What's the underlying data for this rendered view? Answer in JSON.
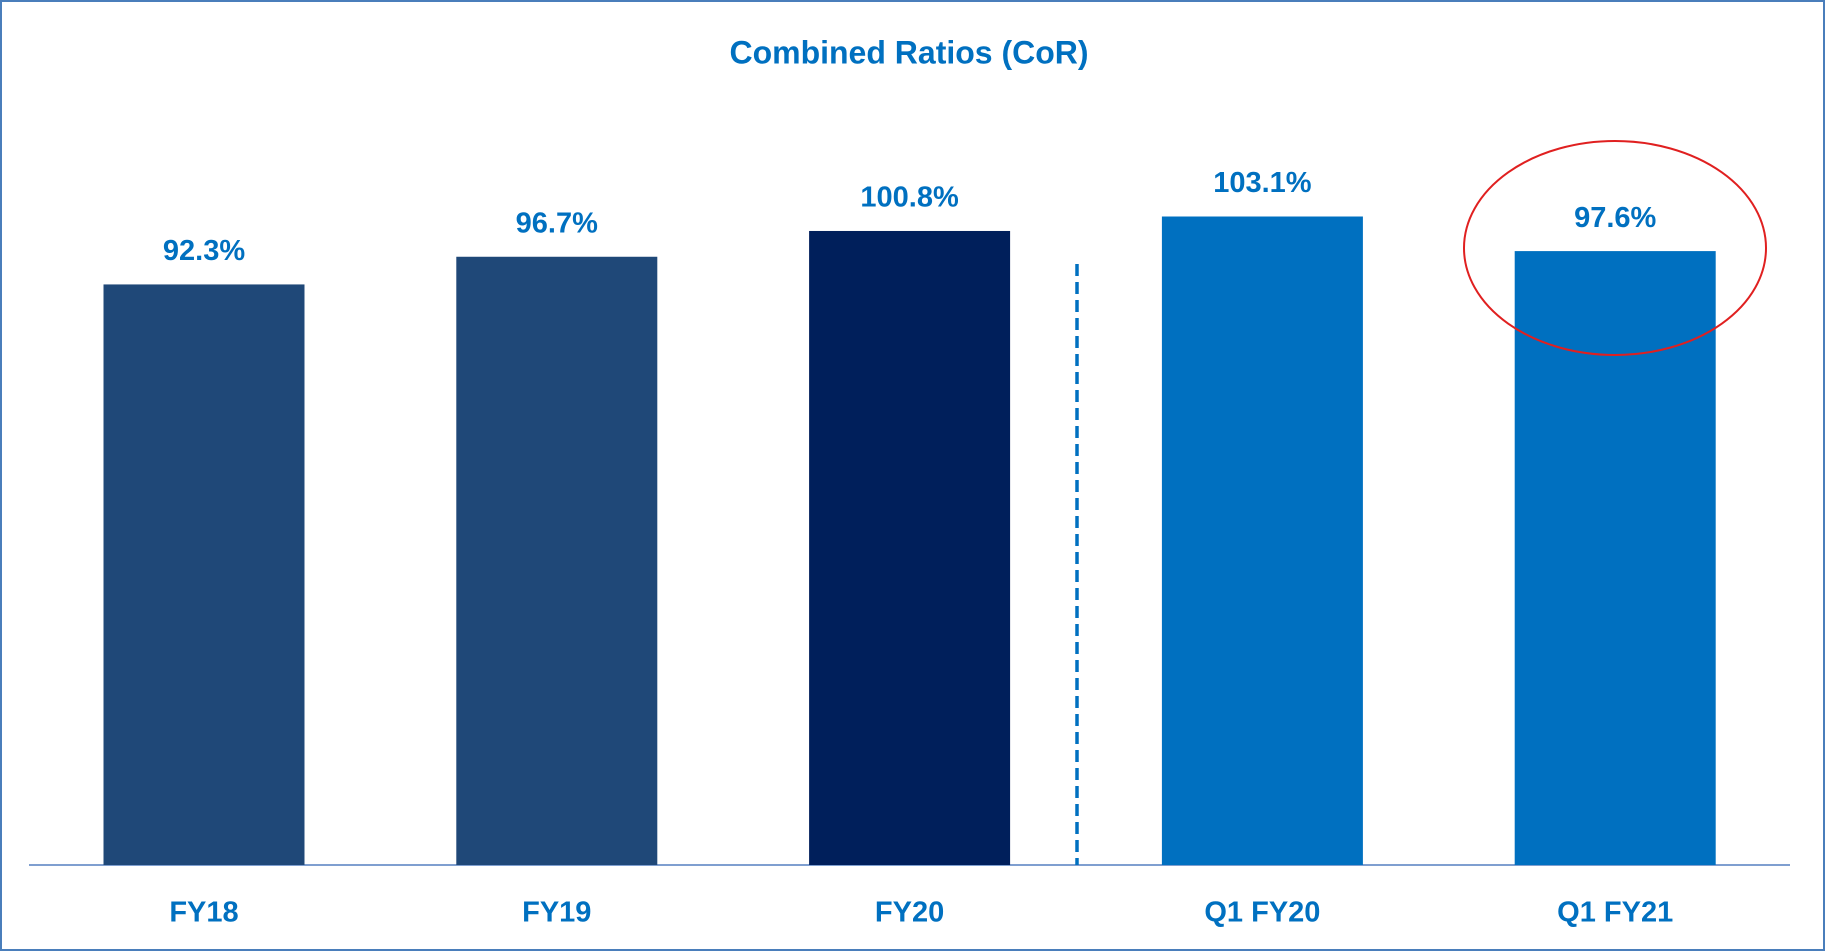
{
  "chart_data": {
    "type": "bar",
    "title": "Combined Ratios (CoR)",
    "categories": [
      "FY18",
      "FY19",
      "FY20",
      "Q1 FY20",
      "Q1 FY21"
    ],
    "values": [
      92.3,
      96.7,
      100.8,
      103.1,
      97.6
    ],
    "value_labels": [
      "92.3%",
      "96.7%",
      "100.8%",
      "103.1%",
      "97.6%"
    ],
    "colors": [
      "#1f4878",
      "#1f4878",
      "#001f5b",
      "#0070c0",
      "#0070c0"
    ]
  }
}
